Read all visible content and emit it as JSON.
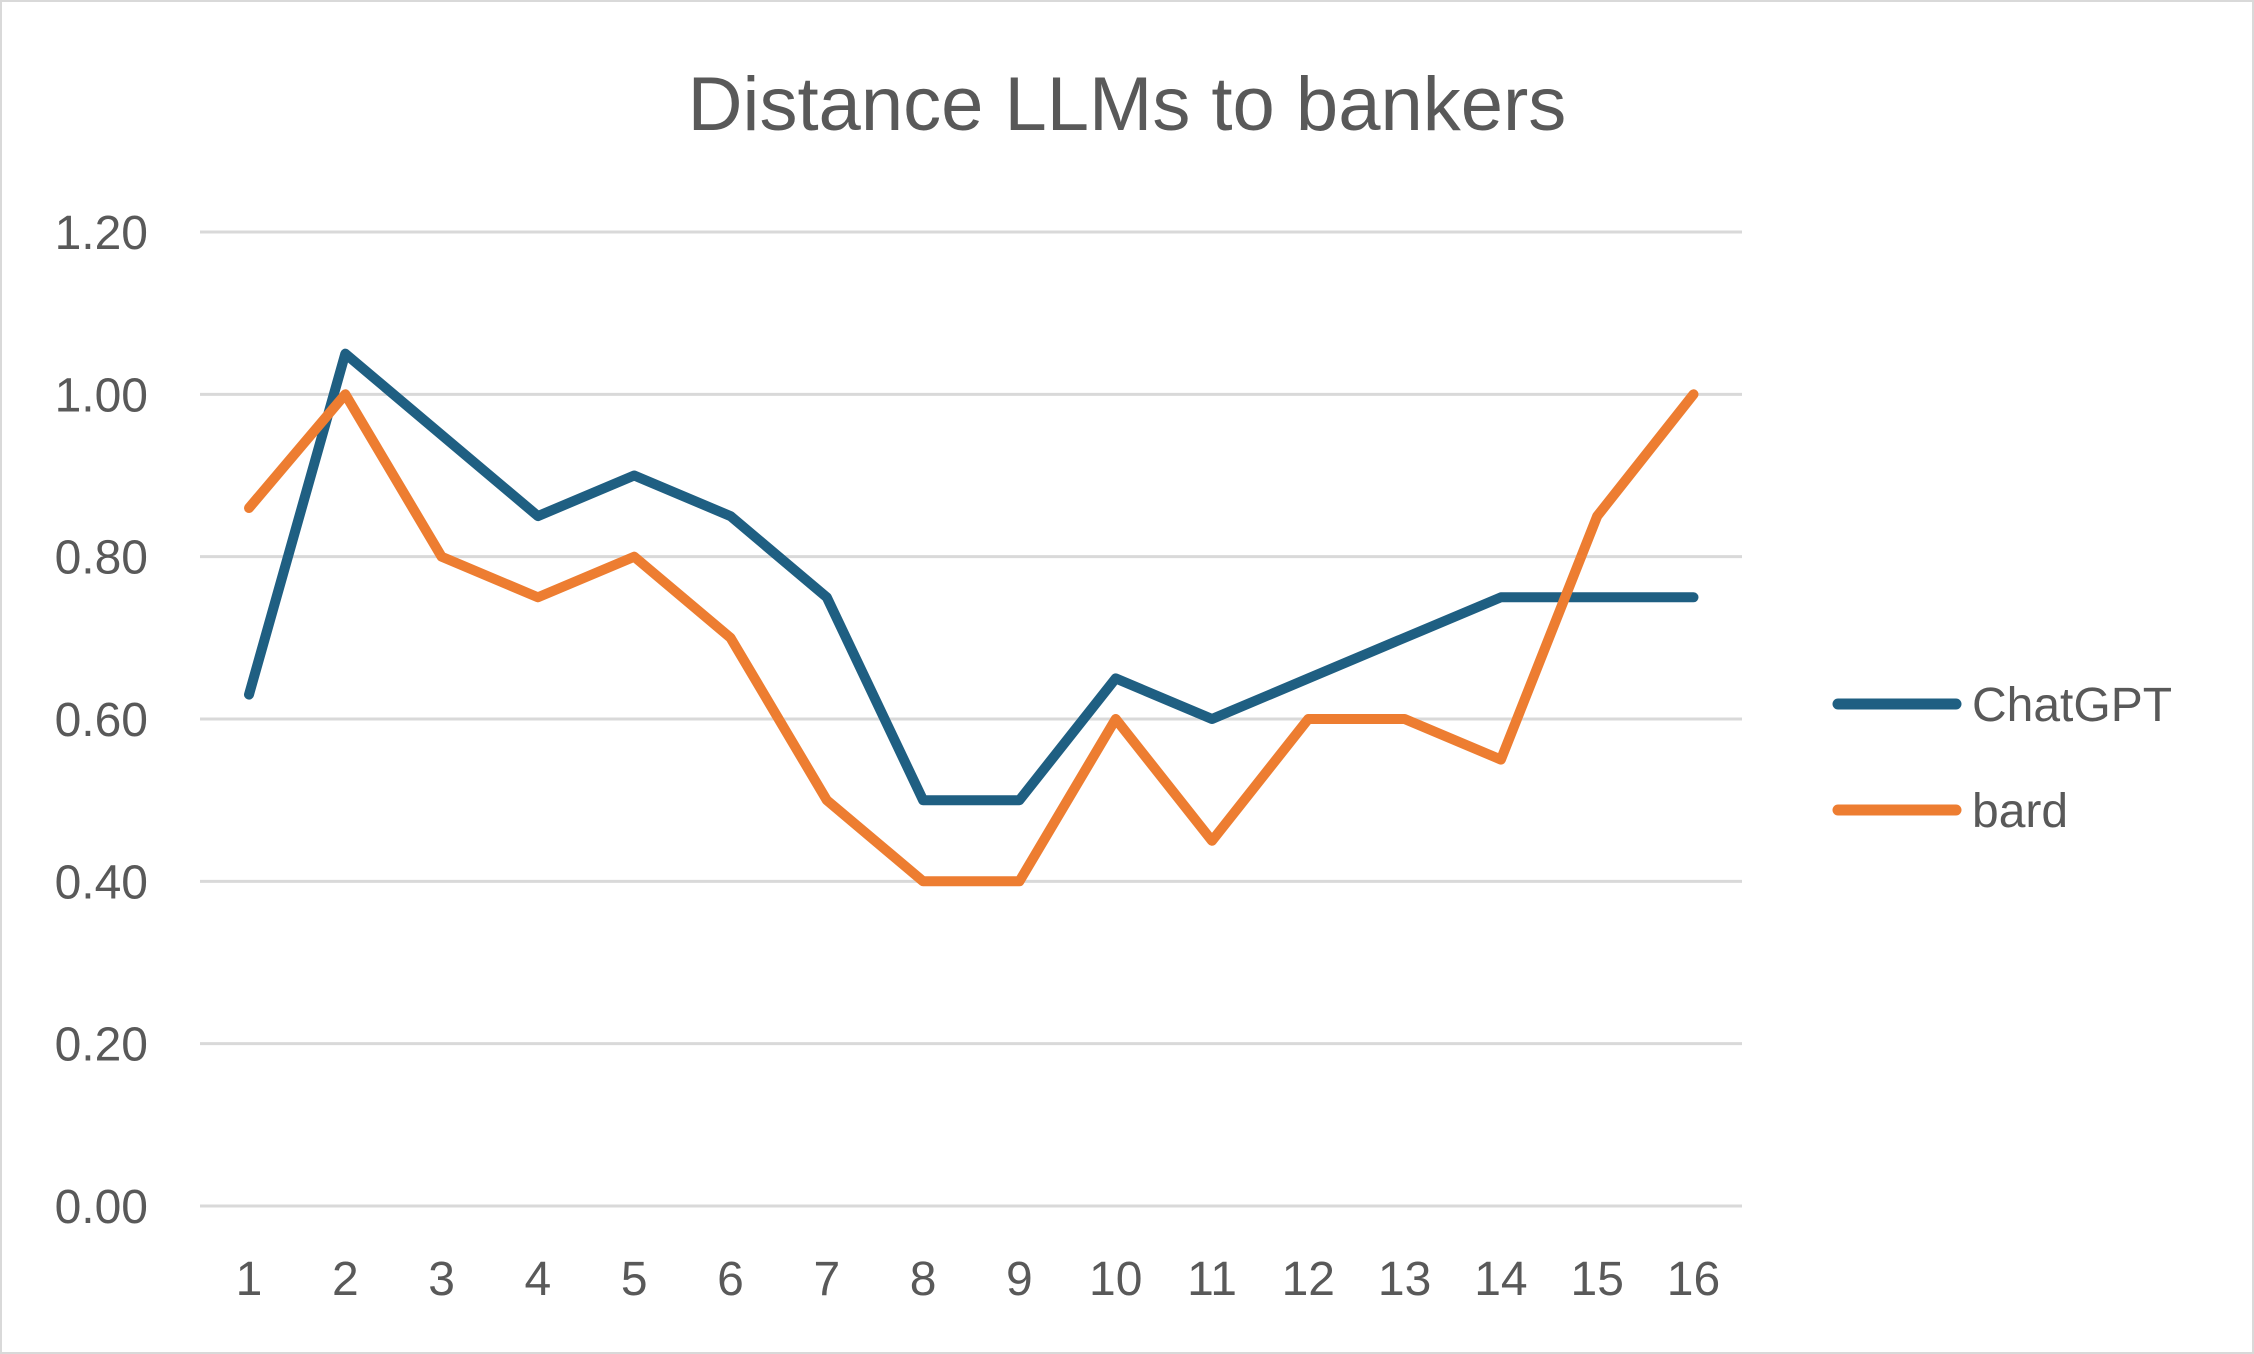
{
  "chart_data": {
    "type": "line",
    "title": "Distance LLMs to bankers",
    "xlabel": "",
    "ylabel": "",
    "categories": [
      "1",
      "2",
      "3",
      "4",
      "5",
      "6",
      "7",
      "8",
      "9",
      "10",
      "11",
      "12",
      "13",
      "14",
      "15",
      "16"
    ],
    "ylim": [
      0,
      1.2
    ],
    "yticks": [
      "0.00",
      "0.20",
      "0.40",
      "0.60",
      "0.80",
      "1.00",
      "1.20"
    ],
    "grid": true,
    "legend_position": "right",
    "series": [
      {
        "name": "ChatGPT",
        "color": "#1f5f82",
        "values": [
          0.63,
          1.05,
          0.95,
          0.85,
          0.9,
          0.85,
          0.75,
          0.5,
          0.5,
          0.65,
          0.6,
          0.65,
          0.7,
          0.75,
          0.75,
          0.75
        ]
      },
      {
        "name": "bard",
        "color": "#ed7d31",
        "values": [
          0.86,
          1.0,
          0.8,
          0.75,
          0.8,
          0.7,
          0.5,
          0.4,
          0.4,
          0.6,
          0.45,
          0.6,
          0.6,
          0.55,
          0.85,
          1.0
        ]
      }
    ]
  }
}
